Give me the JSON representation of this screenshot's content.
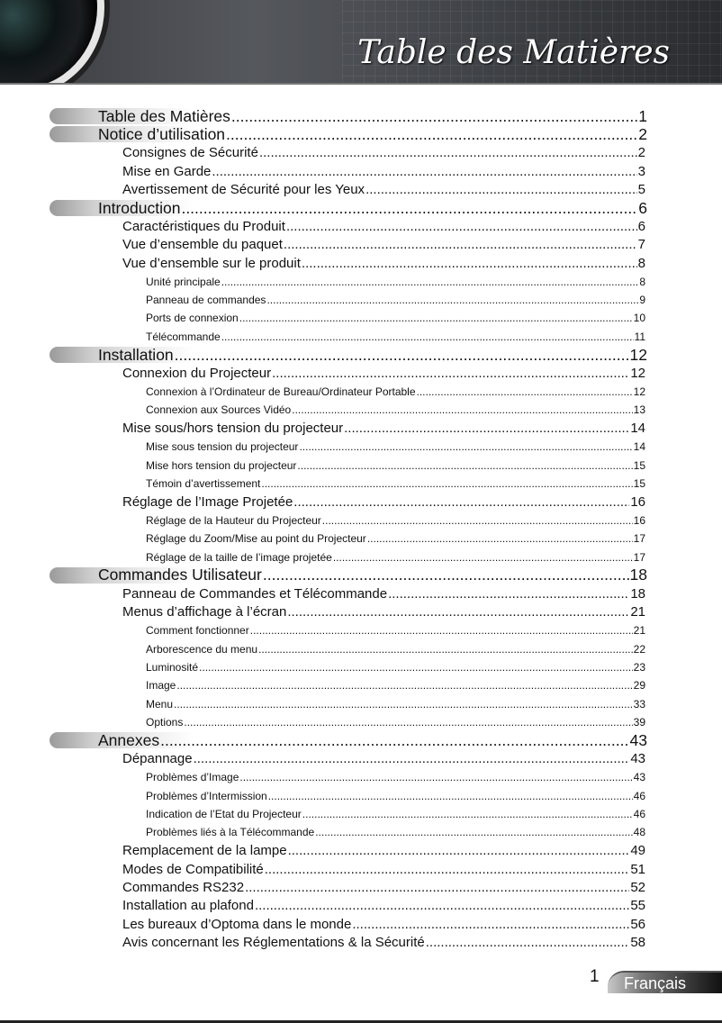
{
  "header": {
    "title": "Table des Matières"
  },
  "toc": [
    {
      "level": 1,
      "title": "Table des Matières",
      "page": "1"
    },
    {
      "level": 1,
      "title": "Notice d’utilisation",
      "page": "2"
    },
    {
      "level": 2,
      "title": "Consignes de Sécurité",
      "page": "2"
    },
    {
      "level": 2,
      "title": "Mise en Garde",
      "page": "3"
    },
    {
      "level": 2,
      "title": "Avertissement de Sécurité pour les Yeux",
      "page": "5"
    },
    {
      "level": 1,
      "title": "Introduction",
      "page": "6"
    },
    {
      "level": 2,
      "title": "Caractéristiques du Produit",
      "page": "6"
    },
    {
      "level": 2,
      "title": "Vue d’ensemble du paquet",
      "page": "7"
    },
    {
      "level": 2,
      "title": "Vue d’ensemble sur le produit",
      "page": "8"
    },
    {
      "level": 3,
      "title": "Unité principale",
      "page": "8"
    },
    {
      "level": 3,
      "title": "Panneau de commandes",
      "page": "9"
    },
    {
      "level": 3,
      "title": "Ports de connexion",
      "page": "10"
    },
    {
      "level": 3,
      "title": "Télécommande",
      "page": "11"
    },
    {
      "level": 1,
      "title": "Installation",
      "page": "12"
    },
    {
      "level": 2,
      "title": "Connexion du Projecteur",
      "page": "12"
    },
    {
      "level": 3,
      "title": "Connexion à l’Ordinateur de Bureau/Ordinateur Portable",
      "page": "12"
    },
    {
      "level": 3,
      "title": "Connexion aux Sources Vidéo",
      "page": "13"
    },
    {
      "level": 2,
      "title": "Mise sous/hors tension du projecteur",
      "page": "14"
    },
    {
      "level": 3,
      "title": "Mise sous tension du projecteur",
      "page": "14"
    },
    {
      "level": 3,
      "title": "Mise hors tension du projecteur",
      "page": "15"
    },
    {
      "level": 3,
      "title": "Témoin d’avertissement",
      "page": "15"
    },
    {
      "level": 2,
      "title": "Réglage de l’Image Projetée",
      "page": "16"
    },
    {
      "level": 3,
      "title": "Réglage de la Hauteur du Projecteur",
      "page": "16"
    },
    {
      "level": 3,
      "title": "Réglage du Zoom/Mise au point du Projecteur",
      "page": "17"
    },
    {
      "level": 3,
      "title": "Réglage de la taille de l’image projetée",
      "page": "17"
    },
    {
      "level": 1,
      "title": "Commandes Utilisateur",
      "page": "18"
    },
    {
      "level": 2,
      "title": "Panneau de Commandes et Télécommande",
      "page": "18"
    },
    {
      "level": 2,
      "title": "Menus d’affichage à l’écran",
      "page": "21"
    },
    {
      "level": 3,
      "title": "Comment fonctionner",
      "page": "21"
    },
    {
      "level": 3,
      "title": "Arborescence du menu",
      "page": "22"
    },
    {
      "level": 3,
      "title": "Luminosité",
      "page": "23"
    },
    {
      "level": 3,
      "title": "Image",
      "page": "29"
    },
    {
      "level": 3,
      "title": "Menu",
      "page": "33"
    },
    {
      "level": 3,
      "title": "Options",
      "page": "39"
    },
    {
      "level": 1,
      "title": "Annexes",
      "page": "43"
    },
    {
      "level": 2,
      "title": "Dépannage",
      "page": "43"
    },
    {
      "level": 3,
      "title": "Problèmes d’Image",
      "page": "43"
    },
    {
      "level": 3,
      "title": "Problèmes d’Intermission",
      "page": "46"
    },
    {
      "level": 3,
      "title": "Indication de l’Etat du Projecteur",
      "page": "46"
    },
    {
      "level": 3,
      "title": "Problèmes liés à la Télécommande",
      "page": "48"
    },
    {
      "level": 2,
      "title": "Remplacement de la lampe",
      "page": "49"
    },
    {
      "level": 2,
      "title": "Modes de Compatibilité",
      "page": "51"
    },
    {
      "level": 2,
      "title": "Commandes RS232",
      "page": "52"
    },
    {
      "level": 2,
      "title": "Installation au plafond",
      "page": "55"
    },
    {
      "level": 2,
      "title": "Les bureaux d’Optoma dans le monde",
      "page": "56"
    },
    {
      "level": 2,
      "title": "Avis concernant les Réglementations & la Sécurité",
      "page": "58"
    }
  ],
  "footer": {
    "page_number": "1",
    "language": "Français"
  }
}
